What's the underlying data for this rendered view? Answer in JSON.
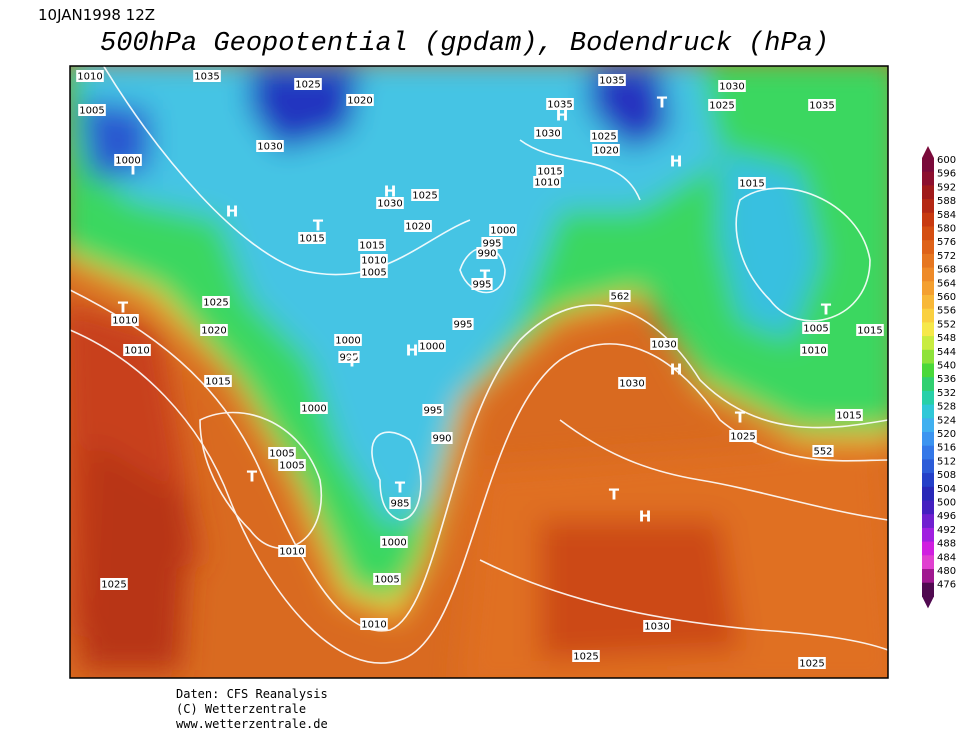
{
  "header": {
    "date": "10JAN1998 12Z",
    "title": "500hPa Geopotential (gpdam), Bodendruck (hPa)"
  },
  "map": {
    "isobar_labels": [
      "1010",
      "1035",
      "1025",
      "1020",
      "1035",
      "1030",
      "1005",
      "1035",
      "1025",
      "1035",
      "1030",
      "1030",
      "1025",
      "1020",
      "1000",
      "1015",
      "1010",
      "1015",
      "1030",
      "1025",
      "1020",
      "1015",
      "1000",
      "995",
      "990",
      "1015",
      "1010",
      "1005",
      "995",
      "1025",
      "1010",
      "562",
      "1020",
      "995",
      "1005",
      "1015",
      "1010",
      "1000",
      "1000",
      "995",
      "1030",
      "1010",
      "1015",
      "1030",
      "1000",
      "995",
      "1015",
      "990",
      "1025",
      "1005",
      "1005",
      "552",
      "985",
      "1010",
      "1000",
      "1005",
      "1025",
      "1010",
      "1030",
      "1025",
      "1025"
    ],
    "centers": [
      "T",
      "H",
      "T",
      "H",
      "T",
      "H",
      "T",
      "H",
      "T",
      "T",
      "H",
      "T",
      "T",
      "H",
      "T",
      "T",
      "H",
      "T"
    ]
  },
  "colorbar": {
    "labels": [
      "600",
      "596",
      "592",
      "588",
      "584",
      "580",
      "576",
      "572",
      "568",
      "564",
      "560",
      "556",
      "552",
      "548",
      "544",
      "540",
      "536",
      "532",
      "528",
      "524",
      "520",
      "516",
      "512",
      "508",
      "504",
      "500",
      "496",
      "492",
      "488",
      "484",
      "480",
      "476"
    ],
    "colors": [
      "#7a0a3a",
      "#8c0f2e",
      "#a01a1a",
      "#b42814",
      "#c83a10",
      "#d44e12",
      "#de6218",
      "#e67620",
      "#ee8a28",
      "#f4a030",
      "#f8b838",
      "#fad040",
      "#f6e84a",
      "#c8ec40",
      "#8ee23a",
      "#4ad83a",
      "#30d070",
      "#28d0a8",
      "#30c8d8",
      "#40b0f0",
      "#3c94f0",
      "#3478e8",
      "#2c5cd8",
      "#2440c8",
      "#2828b8",
      "#4420c0",
      "#7020d0",
      "#a020e0",
      "#d020e0",
      "#e040d0",
      "#a01890",
      "#500a50"
    ]
  },
  "footer": {
    "lines": [
      "Daten: CFS Reanalysis",
      "(C) Wetterzentrale",
      "www.wetterzentrale.de"
    ]
  }
}
